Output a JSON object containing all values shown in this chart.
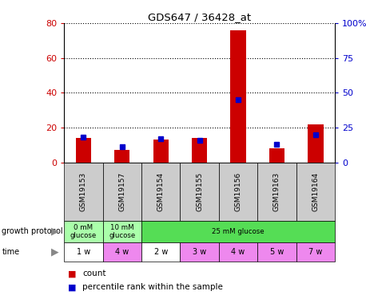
{
  "title": "GDS647 / 36428_at",
  "samples": [
    "GSM19153",
    "GSM19157",
    "GSM19154",
    "GSM19155",
    "GSM19156",
    "GSM19163",
    "GSM19164"
  ],
  "counts": [
    14,
    7,
    13,
    14,
    76,
    8,
    22
  ],
  "percentile_ranks": [
    18,
    11,
    17,
    16,
    45,
    13,
    20
  ],
  "ylim_left": [
    0,
    80
  ],
  "ylim_right": [
    0,
    100
  ],
  "yticks_left": [
    0,
    20,
    40,
    60,
    80
  ],
  "yticks_right": [
    0,
    25,
    50,
    75,
    100
  ],
  "yticklabels_right": [
    "0",
    "25",
    "50",
    "75",
    "100%"
  ],
  "bar_color": "#cc0000",
  "dot_color": "#0000cc",
  "gp_labels": [
    "0 mM\nglucose",
    "10 mM\nglucose",
    "25 mM glucose"
  ],
  "gp_spans": [
    1,
    1,
    5
  ],
  "gp_colors": [
    "#aaffaa",
    "#aaffaa",
    "#55dd55"
  ],
  "time_labels": [
    "1 w",
    "4 w",
    "2 w",
    "3 w",
    "4 w",
    "5 w",
    "7 w"
  ],
  "time_colors": [
    "#ffffff",
    "#ee88ee",
    "#ffffff",
    "#ee88ee",
    "#ee88ee",
    "#ee88ee",
    "#ee88ee"
  ],
  "sample_bg": "#cccccc",
  "legend_bar_label": "count",
  "legend_dot_label": "percentile rank within the sample"
}
